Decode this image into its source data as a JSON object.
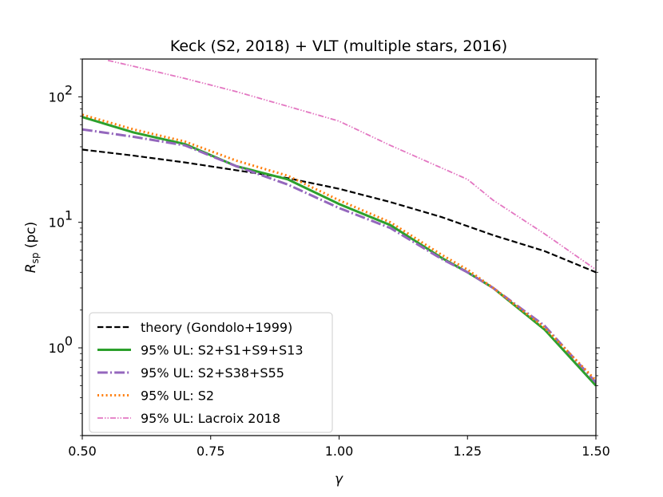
{
  "chart_data": {
    "type": "line",
    "title": "Keck (S2, 2018) + VLT (multiple stars, 2016)",
    "xlabel": "γ",
    "ylabel_main": "R",
    "ylabel_sub": "sp",
    "ylabel_unit": " (pc)",
    "xlim": [
      0.5,
      1.5
    ],
    "ylim": [
      0.2,
      200
    ],
    "yscale": "log",
    "x_ticks": [
      0.5,
      0.75,
      1.0,
      1.25,
      1.5
    ],
    "x_tick_labels": [
      "0.50",
      "0.75",
      "1.00",
      "1.25",
      "1.50"
    ],
    "y_ticks": [
      1,
      10,
      100
    ],
    "y_tick_labels": [
      {
        "base": "10",
        "exp": "0"
      },
      {
        "base": "10",
        "exp": "1"
      },
      {
        "base": "10",
        "exp": "2"
      }
    ],
    "legend_position": "lower-left",
    "series": [
      {
        "name": "theory (Gondolo+1999)",
        "color": "#000000",
        "style": "dashed",
        "x": [
          0.5,
          0.6,
          0.7,
          0.8,
          0.9,
          1.0,
          1.1,
          1.2,
          1.3,
          1.4,
          1.5
        ],
        "y": [
          38,
          34,
          30,
          26,
          22.5,
          18.5,
          14.5,
          11,
          7.9,
          5.9,
          4.0
        ]
      },
      {
        "name": "95% UL: S2+S1+S9+S13",
        "color": "#2ca02c",
        "style": "solid",
        "x": [
          0.5,
          0.6,
          0.7,
          0.8,
          0.9,
          1.0,
          1.1,
          1.2,
          1.25,
          1.3,
          1.4,
          1.5
        ],
        "y": [
          69,
          52,
          42,
          28,
          22,
          14,
          9.5,
          5.2,
          4.0,
          3.0,
          1.4,
          0.5
        ]
      },
      {
        "name": "95% UL: S2+S38+S55",
        "color": "#9467bd",
        "style": "dashdot",
        "x": [
          0.5,
          0.6,
          0.7,
          0.8,
          0.9,
          1.0,
          1.1,
          1.2,
          1.25,
          1.3,
          1.4,
          1.5
        ],
        "y": [
          55,
          48,
          41,
          28,
          20,
          13,
          9.0,
          5.1,
          4.0,
          3.0,
          1.5,
          0.53
        ]
      },
      {
        "name": "95% UL: S2",
        "color": "#ff7f0e",
        "style": "dotted",
        "x": [
          0.5,
          0.6,
          0.7,
          0.8,
          0.9,
          1.0,
          1.1,
          1.2,
          1.25,
          1.3,
          1.4,
          1.5
        ],
        "y": [
          72,
          55,
          44,
          31,
          23.5,
          15,
          10,
          5.5,
          4.2,
          3.0,
          1.45,
          0.55
        ]
      },
      {
        "name": "95% UL: Lacroix 2018",
        "color": "#e377c2",
        "style": "dashdotdot",
        "x": [
          0.55,
          0.6,
          0.7,
          0.8,
          0.9,
          1.0,
          1.1,
          1.25,
          1.3,
          1.4,
          1.5
        ],
        "y": [
          195,
          175,
          140,
          110,
          84,
          64,
          41,
          22,
          15,
          8.1,
          4.2
        ]
      }
    ]
  }
}
